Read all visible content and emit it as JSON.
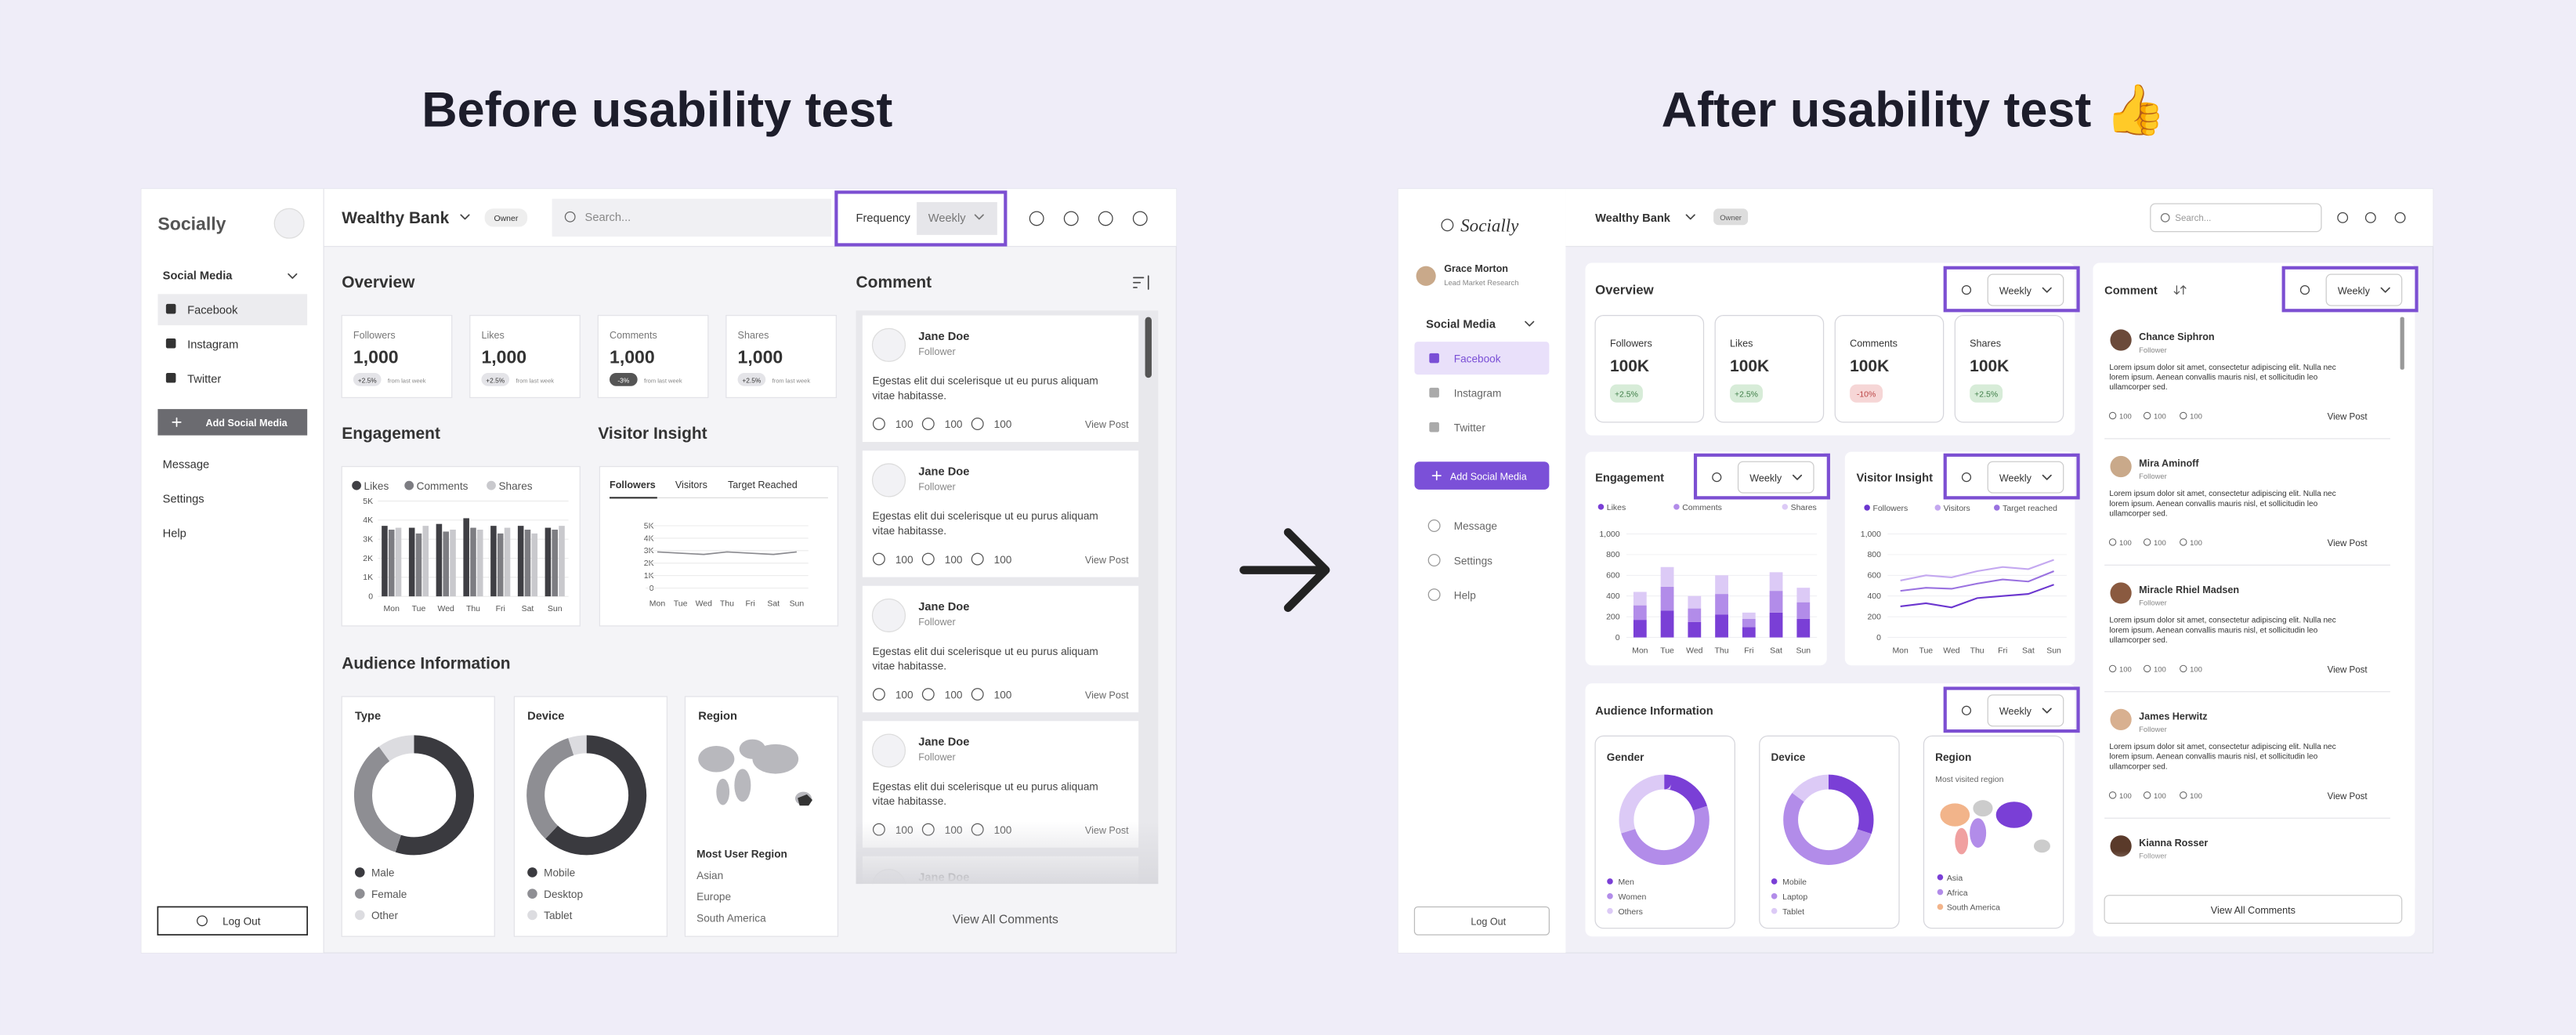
{
  "before": {
    "heading": "Before usability test",
    "sidebar": {
      "brand": "Socially",
      "section": "Social Media",
      "items": [
        "Facebook",
        "Instagram",
        "Twitter"
      ],
      "add_button": "Add Social Media",
      "menu": [
        "Message",
        "Settings",
        "Help"
      ],
      "logout": "Log Out"
    },
    "topbar": {
      "account": "Wealthy Bank",
      "role": "Owner",
      "search": "Search...",
      "frequency_label": "Frequency",
      "frequency_value": "Weekly"
    },
    "overview": {
      "title": "Overview",
      "stats": [
        {
          "label": "Followers",
          "value": "1,000",
          "change": "+2.5%",
          "note": "from last week"
        },
        {
          "label": "Likes",
          "value": "1,000",
          "change": "+2.5%",
          "note": "from last week"
        },
        {
          "label": "Comments",
          "value": "1,000",
          "change": "-3%",
          "note": "from last week"
        },
        {
          "label": "Shares",
          "value": "1,000",
          "change": "+2.5%",
          "note": "from last week"
        }
      ]
    },
    "engagement": {
      "type": "bar",
      "title": "Engagement",
      "categories": [
        "Mon",
        "Tue",
        "Wed",
        "Thu",
        "Fri",
        "Sat",
        "Sun"
      ],
      "series": [
        {
          "name": "Likes",
          "color": "#3f3f44",
          "values": [
            3700,
            3600,
            3800,
            4100,
            3700,
            3700,
            3600
          ]
        },
        {
          "name": "Comments",
          "color": "#7d7d82",
          "values": [
            3500,
            3300,
            3400,
            3600,
            3300,
            3500,
            3500
          ]
        },
        {
          "name": "Shares",
          "color": "#c9c9cd",
          "values": [
            3600,
            3700,
            3500,
            3500,
            3600,
            3300,
            3700
          ]
        }
      ],
      "ylim": [
        0,
        5000
      ],
      "yticks": [
        0,
        {
          "value": 1000,
          "label": "1K"
        },
        {
          "value": 2000,
          "label": "2K"
        },
        {
          "value": 3000,
          "label": "3K"
        },
        {
          "value": 4000,
          "label": "4K"
        },
        {
          "value": 5000,
          "label": "5K"
        }
      ]
    },
    "visitor_insight": {
      "type": "line",
      "title": "Visitor Insight",
      "tabs": [
        "Followers",
        "Visitors",
        "Target Reached"
      ],
      "categories": [
        "Mon",
        "Tue",
        "Wed",
        "Thu",
        "Fri",
        "Sat",
        "Sun"
      ],
      "values": [
        2900,
        2800,
        2700,
        2900,
        2800,
        2700,
        2900
      ],
      "color": "#8a8a8f",
      "ylim": [
        0,
        5000
      ],
      "yticks": [
        0,
        {
          "value": 1000,
          "label": "1K"
        },
        {
          "value": 2000,
          "label": "2K"
        },
        {
          "value": 3000,
          "label": "3K"
        },
        {
          "value": 4000,
          "label": "4K"
        },
        {
          "value": 5000,
          "label": "5K"
        }
      ]
    },
    "audience": {
      "title": "Audience Information",
      "type_chart": {
        "type": "pie",
        "title": "Type",
        "labels": [
          "Male",
          "Female",
          "Other"
        ],
        "values": [
          55,
          35,
          10
        ],
        "colors": [
          "#3a3a3f",
          "#8e8e93",
          "#dcdce0"
        ]
      },
      "device_chart": {
        "type": "pie",
        "title": "Device",
        "labels": [
          "Mobile",
          "Desktop",
          "Tablet"
        ],
        "values": [
          62,
          33,
          5
        ],
        "colors": [
          "#3a3a3f",
          "#8e8e93",
          "#dcdce0"
        ]
      },
      "region": {
        "title": "Region",
        "subtitle": "Most User Region",
        "regions": [
          "Asian",
          "Europe",
          "South America"
        ]
      }
    },
    "comments": {
      "title": "Comment",
      "items": [
        {
          "name": "Jane Doe",
          "role": "Follower",
          "text": "Egestas elit dui scelerisque ut eu purus aliquam vitae habitasse.",
          "counts": [
            100,
            100,
            100
          ],
          "action": "View Post"
        },
        {
          "name": "Jane Doe",
          "role": "Follower",
          "text": "Egestas elit dui scelerisque ut eu purus aliquam vitae habitasse.",
          "counts": [
            100,
            100,
            100
          ],
          "action": "View Post"
        },
        {
          "name": "Jane Doe",
          "role": "Follower",
          "text": "Egestas elit dui scelerisque ut eu purus aliquam vitae habitasse.",
          "counts": [
            100,
            100,
            100
          ],
          "action": "View Post"
        },
        {
          "name": "Jane Doe",
          "role": "Follower",
          "text": "Egestas elit dui scelerisque ut eu purus aliquam vitae habitasse.",
          "counts": [
            100,
            100,
            100
          ],
          "action": "View Post"
        },
        {
          "name": "Jane Doe"
        }
      ],
      "view_all": "View All Comments"
    }
  },
  "after": {
    "heading": "After usability test 👍",
    "sidebar": {
      "brand": "Socially",
      "user": "Grace Morton",
      "user_title": "Lead Market Research",
      "section": "Social Media",
      "items": [
        "Facebook",
        "Instagram",
        "Twitter"
      ],
      "add_button": "Add Social Media",
      "menu": [
        "Message",
        "Settings",
        "Help"
      ],
      "logout": "Log Out"
    },
    "topbar": {
      "account": "Wealthy Bank",
      "role": "Owner",
      "search": "Search..."
    },
    "overview": {
      "title": "Overview",
      "period": "Weekly",
      "stats": [
        {
          "label": "Followers",
          "value": "100K",
          "change": "+2.5%"
        },
        {
          "label": "Likes",
          "value": "100K",
          "change": "+2.5%"
        },
        {
          "label": "Comments",
          "value": "100K",
          "change": "-10%"
        },
        {
          "label": "Shares",
          "value": "100K",
          "change": "+2.5%"
        }
      ]
    },
    "engagement": {
      "type": "bar",
      "stacked": true,
      "title": "Engagement",
      "period": "Weekly",
      "categories": [
        "Mon",
        "Tue",
        "Wed",
        "Thu",
        "Fri",
        "Sat",
        "Sun"
      ],
      "series": [
        {
          "name": "Likes",
          "color": "#7a3fd6",
          "values": [
            170,
            260,
            150,
            220,
            100,
            240,
            180
          ]
        },
        {
          "name": "Comments",
          "color": "#b28ce9",
          "values": [
            140,
            230,
            130,
            200,
            80,
            210,
            160
          ]
        },
        {
          "name": "Shares",
          "color": "#dccaf6",
          "values": [
            130,
            190,
            120,
            180,
            60,
            180,
            140
          ]
        }
      ],
      "ylim": [
        0,
        1000
      ],
      "yticks": [
        0,
        200,
        400,
        600,
        800,
        {
          "value": 1000,
          "label": "1,000"
        }
      ]
    },
    "visitor_insight": {
      "type": "line",
      "title": "Visitor Insight",
      "period": "Weekly",
      "categories": [
        "Mon",
        "Tue",
        "Wed",
        "Thu",
        "Fri",
        "Sat",
        "Sun"
      ],
      "series": [
        {
          "name": "Followers",
          "color": "#6b36cf",
          "values": [
            300,
            330,
            290,
            380,
            400,
            420,
            510
          ]
        },
        {
          "name": "Visitors",
          "color": "#c4a8f0",
          "values": [
            550,
            600,
            580,
            640,
            680,
            660,
            750
          ]
        },
        {
          "name": "Target reached",
          "color": "#9a72e0",
          "values": [
            450,
            480,
            470,
            520,
            560,
            540,
            640
          ]
        }
      ],
      "ylim": [
        0,
        1000
      ],
      "yticks": [
        0,
        200,
        400,
        600,
        800,
        {
          "value": 1000,
          "label": "1,000"
        }
      ]
    },
    "audience": {
      "title": "Audience Information",
      "period": "Weekly",
      "gender_chart": {
        "type": "pie",
        "title": "Gender",
        "labels": [
          "Men",
          "Women",
          "Others"
        ],
        "values": [
          20,
          50,
          30
        ],
        "colors": [
          "#7a3fd6",
          "#b28ce9",
          "#dccaf6"
        ]
      },
      "device_chart": {
        "type": "pie",
        "title": "Device",
        "labels": [
          "Mobile",
          "Laptop",
          "Tablet"
        ],
        "values": [
          30,
          55,
          15
        ],
        "colors": [
          "#7a3fd6",
          "#b28ce9",
          "#dccaf6"
        ]
      },
      "region": {
        "title": "Region",
        "subtitle": "Most visited region",
        "regions": [
          "Asia",
          "Africa",
          "South America"
        ],
        "colors": [
          "#7a3fd6",
          "#b28ce9",
          "#f2b48a"
        ]
      }
    },
    "comments": {
      "title": "Comment",
      "period": "Weekly",
      "items": [
        {
          "name": "Chance Siphron",
          "role": "Follower",
          "text": "Lorem ipsum dolor sit amet, consectetur adipiscing elit. Nulla nec lorem ipsum. Aenean convallis mauris nisl, et sollicitudin leo ullamcorper sed.",
          "counts": [
            100,
            100,
            100
          ],
          "action": "View Post"
        },
        {
          "name": "Mira Aminoff",
          "role": "Follower",
          "text": "Lorem ipsum dolor sit amet, consectetur adipiscing elit. Nulla nec lorem ipsum. Aenean convallis mauris nisl, et sollicitudin leo ullamcorper sed.",
          "counts": [
            100,
            100,
            100
          ],
          "action": "View Post"
        },
        {
          "name": "Miracle Rhiel Madsen",
          "role": "Follower",
          "text": "Lorem ipsum dolor sit amet, consectetur adipiscing elit. Nulla nec lorem ipsum. Aenean convallis mauris nisl, et sollicitudin leo ullamcorper sed.",
          "counts": [
            100,
            100,
            100
          ],
          "action": "View Post"
        },
        {
          "name": "James Herwitz",
          "role": "Follower",
          "text": "Lorem ipsum dolor sit amet, consectetur adipiscing elit. Nulla nec lorem ipsum. Aenean convallis mauris nisl, et sollicitudin leo ullamcorper sed.",
          "counts": [
            100,
            100,
            100
          ],
          "action": "View Post"
        },
        {
          "name": "Kianna Rosser",
          "role": "Follower"
        }
      ],
      "view_all": "View All Comments"
    }
  }
}
